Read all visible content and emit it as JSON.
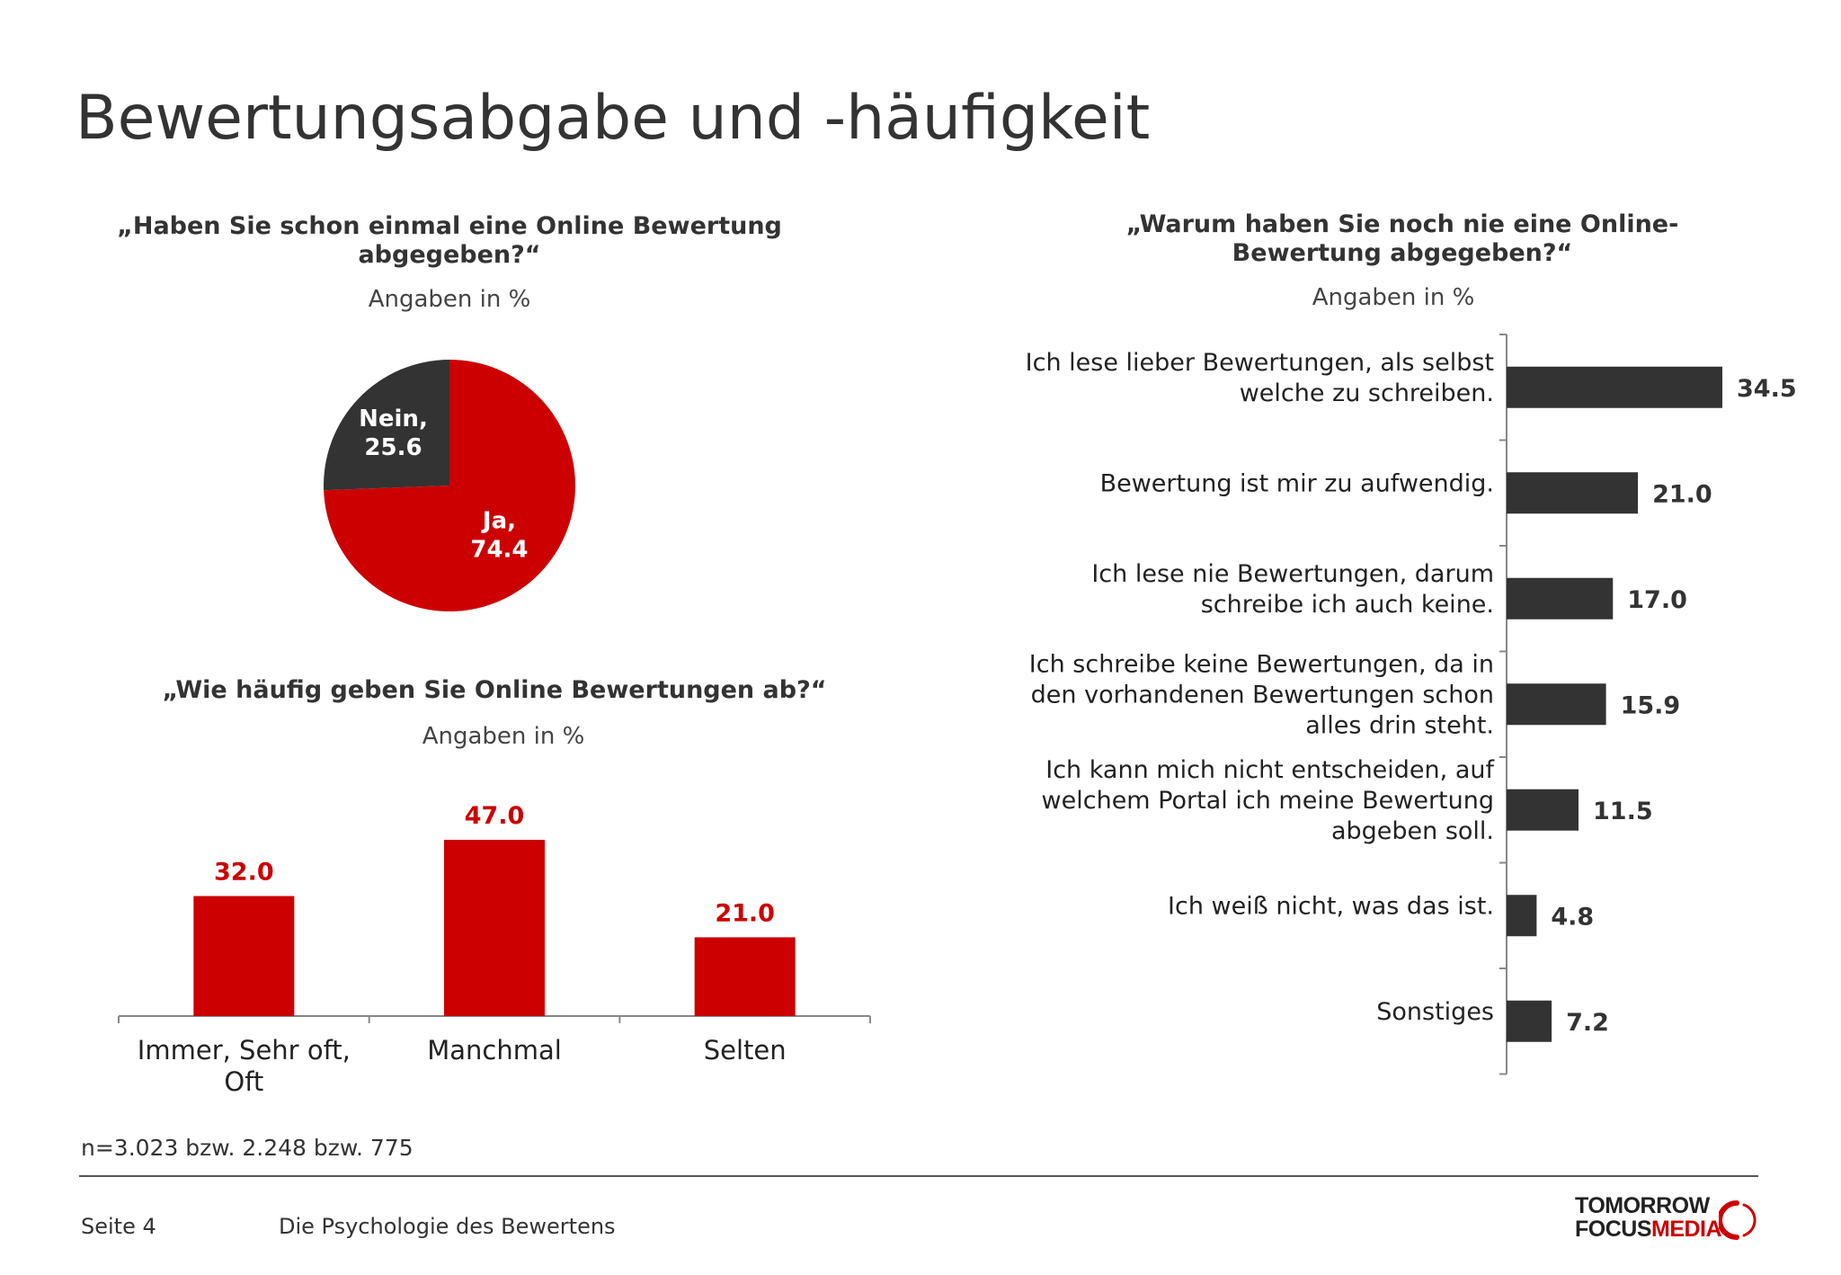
{
  "page": {
    "title": "Bewertungsabgabe und -häufigkeit",
    "footnote": "n=3.023 bzw. 2.248 bzw. 775",
    "page_number": "Seite 4",
    "footer_title": "Die Psychologie des Bewertens",
    "logo": {
      "line1": "TOMORROW",
      "line2_black": "FOCUS",
      "line2_red": "MEDIA"
    }
  },
  "colors": {
    "red": "#cc0000",
    "dark": "#333333",
    "axis": "#888888"
  },
  "chart_data": [
    {
      "type": "pie",
      "title": "„Haben Sie schon einmal eine Online Bewertung abgegeben?“",
      "subtitle": "Angaben in %",
      "series": [
        {
          "label": "Ja,",
          "value": 74.4,
          "value_label": "74.4",
          "color": "#cc0000"
        },
        {
          "label": "Nein,",
          "value": 25.6,
          "value_label": "25.6",
          "color": "#333333"
        }
      ]
    },
    {
      "type": "bar",
      "title": "„Wie häufig geben Sie Online Bewertungen ab?“",
      "subtitle": "Angaben in %",
      "categories": [
        [
          "Immer, Sehr oft,",
          "Oft"
        ],
        [
          "Manchmal"
        ],
        [
          "Selten"
        ]
      ],
      "values": [
        32.0,
        47.0,
        21.0
      ],
      "value_labels": [
        "32.0",
        "47.0",
        "21.0"
      ],
      "ylim": [
        0,
        60
      ],
      "bar_color": "#cc0000",
      "label_color": "#cc0000"
    },
    {
      "type": "bar",
      "orientation": "horizontal",
      "title": "„Warum haben Sie noch nie eine Online-Bewertung abgegeben?“",
      "subtitle": "Angaben in %",
      "categories": [
        [
          "Ich lese lieber Bewertungen, als selbst",
          "welche zu schreiben."
        ],
        [
          "Bewertung ist mir zu aufwendig."
        ],
        [
          "Ich lese nie Bewertungen, darum",
          "schreibe ich auch keine."
        ],
        [
          "Ich schreibe keine Bewertungen, da in",
          "den vorhandenen Bewertungen schon",
          "alles drin steht."
        ],
        [
          "Ich kann mich nicht entscheiden, auf",
          "welchem Portal ich meine Bewertung",
          "abgeben soll."
        ],
        [
          "Ich weiß nicht, was das ist."
        ],
        [
          "Sonstiges"
        ]
      ],
      "values": [
        34.5,
        21.0,
        17.0,
        15.9,
        11.5,
        4.8,
        7.2
      ],
      "value_labels": [
        "34.5",
        "21.0",
        "17.0",
        "15.9",
        "11.5",
        "4.8",
        "7.2"
      ],
      "xlim": [
        0,
        40
      ],
      "bar_color": "#333333"
    }
  ]
}
